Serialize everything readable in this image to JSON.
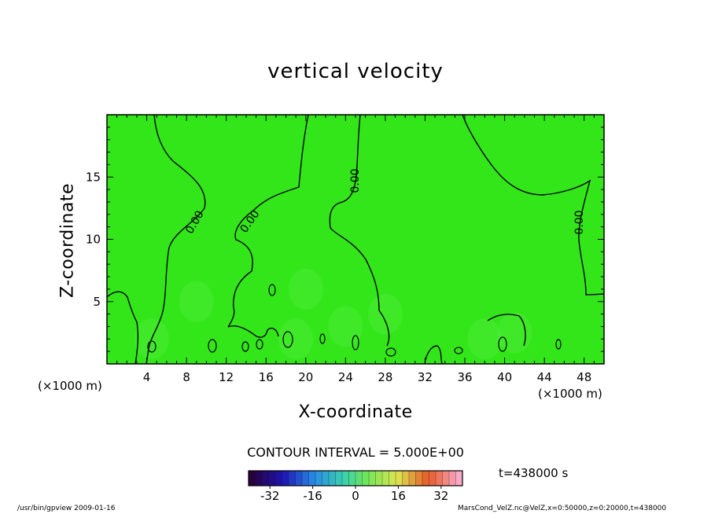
{
  "chart_data": {
    "type": "heatmap",
    "title": "vertical velocity",
    "xlabel": "X-coordinate",
    "ylabel": "Z-coordinate",
    "x_unit": "(×1000 m)",
    "xlim": [
      0,
      50
    ],
    "ylim": [
      0,
      20
    ],
    "x_ticks": [
      4,
      8,
      12,
      16,
      20,
      24,
      28,
      32,
      36,
      40,
      44,
      48
    ],
    "y_ticks": [
      5,
      10,
      15
    ],
    "contour_interval": "CONTOUR INTERVAL = 5.000E+00",
    "contour_labels": [
      "0.00",
      "0.00",
      "0.00",
      "0.00"
    ],
    "time_label": "t=438000 s",
    "colorbar": {
      "ticks": [
        -32,
        -16,
        0,
        16,
        32
      ],
      "range": [
        -40,
        40
      ],
      "levels": 32
    },
    "field_summary": "near-zero everywhere; small fluctuations below z≈5"
  },
  "footer": {
    "left": "/usr/bin/gpview   2009-01-16",
    "right": "MarsCond_VelZ.nc@VelZ,x=0:50000,z=0:20000,t=438000"
  },
  "colors": {
    "field": "#33e61a",
    "axes": "#000000"
  }
}
